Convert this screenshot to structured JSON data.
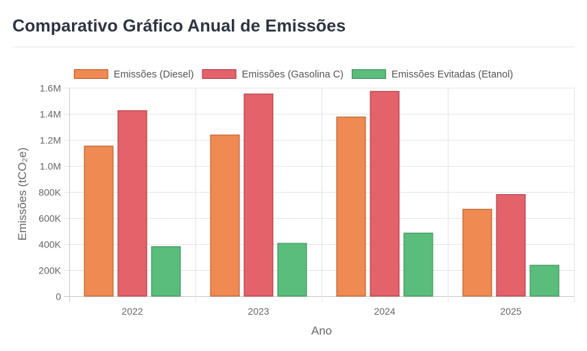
{
  "page": {
    "title": "Comparativo Gráfico Anual de Emissões"
  },
  "chart_data": {
    "type": "bar",
    "title": "Comparativo Gráfico Anual de Emissões",
    "xlabel": "Ano",
    "ylabel": "Emissões (tCO₂e)",
    "categories": [
      "2022",
      "2023",
      "2024",
      "2025"
    ],
    "ylim": [
      0,
      1600000
    ],
    "yticks": [
      {
        "value": 0,
        "label": "0"
      },
      {
        "value": 200000,
        "label": "200K"
      },
      {
        "value": 400000,
        "label": "400K"
      },
      {
        "value": 600000,
        "label": "600K"
      },
      {
        "value": 800000,
        "label": "800K"
      },
      {
        "value": 1000000,
        "label": "1.0M"
      },
      {
        "value": 1200000,
        "label": "1.2M"
      },
      {
        "value": 1400000,
        "label": "1.4M"
      },
      {
        "value": 1600000,
        "label": "1.6M"
      }
    ],
    "grid": true,
    "legend_position": "top",
    "series": [
      {
        "name": "Emissões (Diesel)",
        "fill": "#ee8a52",
        "stroke": "#b5531d",
        "values": [
          1155000,
          1240000,
          1378000,
          670000
        ]
      },
      {
        "name": "Emissões (Gasolina C)",
        "fill": "#e4626a",
        "stroke": "#a8303a",
        "values": [
          1427000,
          1555000,
          1575000,
          783000
        ]
      },
      {
        "name": "Emissões Evitadas (Etanol)",
        "fill": "#5abd7b",
        "stroke": "#2e8a4f",
        "values": [
          383000,
          408000,
          487000,
          240000
        ]
      }
    ]
  }
}
